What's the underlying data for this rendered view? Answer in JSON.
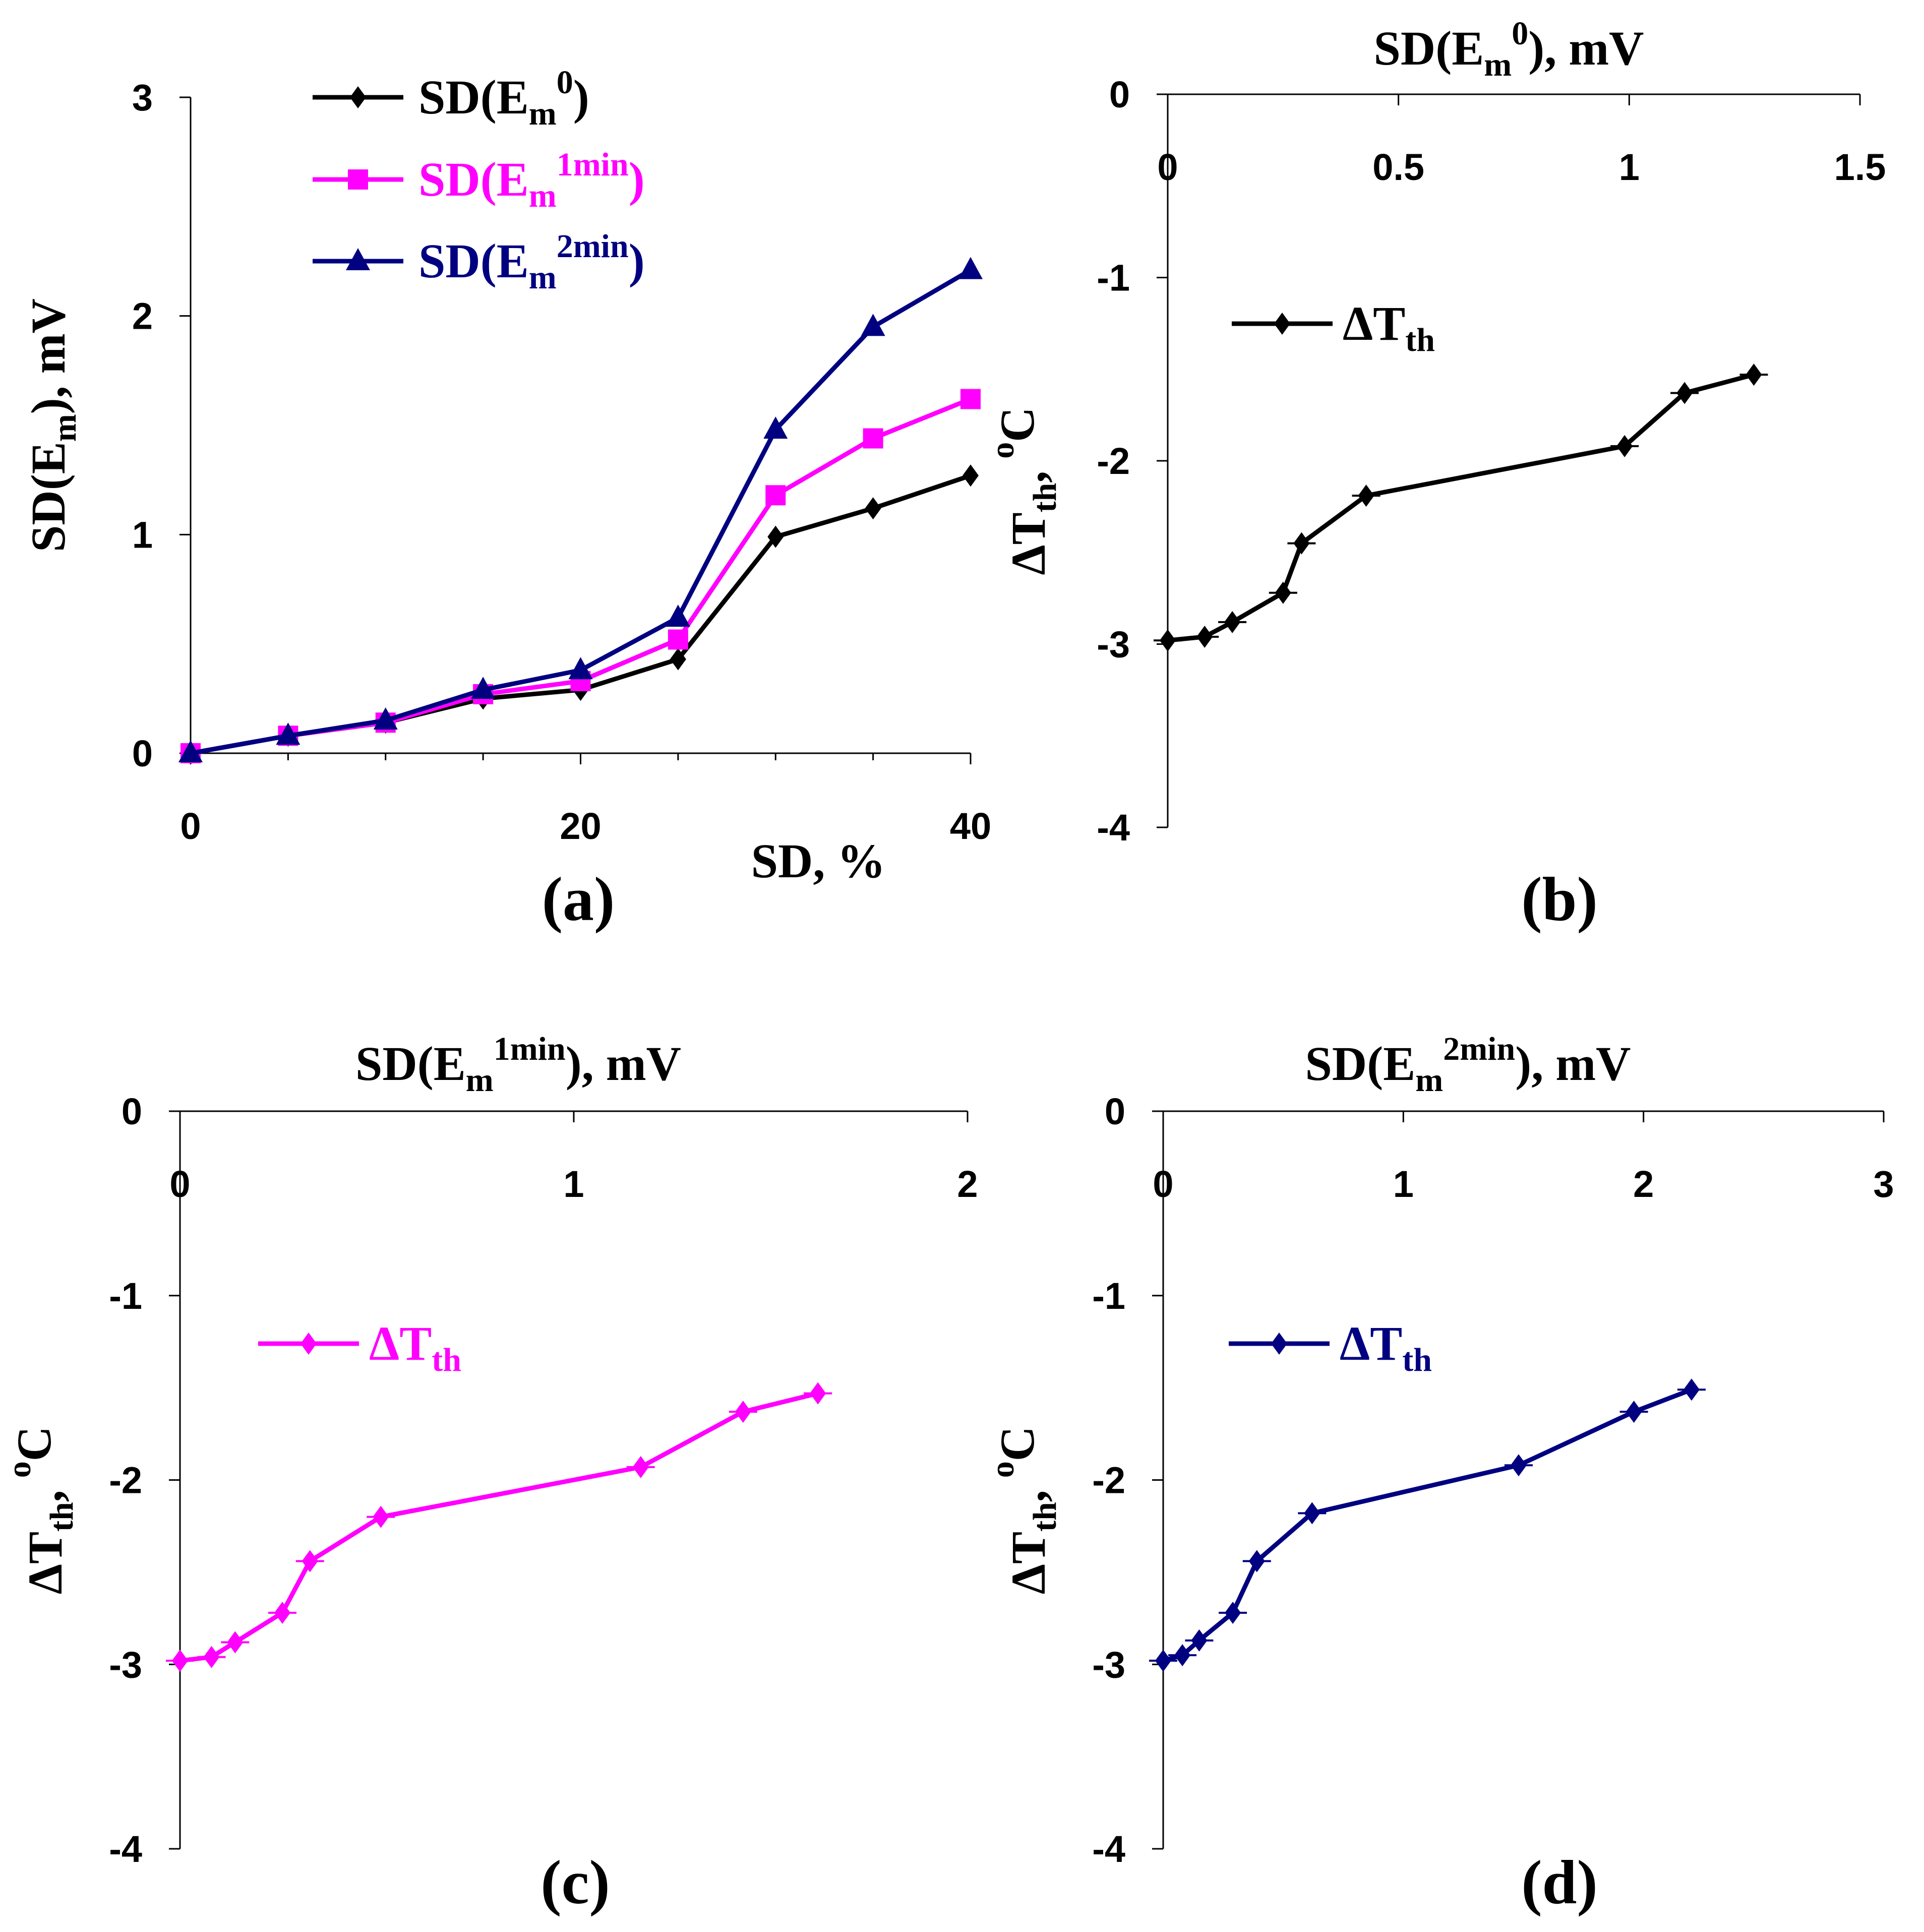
{
  "chart_data": [
    {
      "panel": "(a)",
      "type": "line",
      "xlabel": "SD, %",
      "ylabel_parts": [
        "SD(E",
        "m",
        "), mV"
      ],
      "xlim": [
        0,
        40
      ],
      "ylim": [
        0,
        3
      ],
      "xticks": [
        "0",
        "20",
        "40"
      ],
      "yticks": [
        "0",
        "1",
        "2",
        "3"
      ],
      "x": [
        0,
        5,
        10,
        15,
        20,
        25,
        30,
        35,
        40
      ],
      "series": [
        {
          "name": "SD(Em0)",
          "label_parts": [
            "SD(E",
            "m",
            "0",
            ")"
          ],
          "color": "#000000",
          "marker": "diamond",
          "values": [
            0,
            0.08,
            0.14,
            0.25,
            0.29,
            0.43,
            0.99,
            1.12,
            1.27
          ]
        },
        {
          "name": "SD(Em1min)",
          "label_parts": [
            "SD(E",
            "m",
            "1min",
            ")"
          ],
          "color": "#ff00ff",
          "marker": "square",
          "values": [
            0,
            0.08,
            0.14,
            0.27,
            0.33,
            0.52,
            1.18,
            1.44,
            1.62
          ]
        },
        {
          "name": "SD(Em2min)",
          "label_parts": [
            "SD(E",
            "m",
            "2min",
            ")"
          ],
          "color": "#000080",
          "marker": "triangle",
          "values": [
            0,
            0.08,
            0.15,
            0.29,
            0.38,
            0.62,
            1.48,
            1.95,
            2.21
          ]
        }
      ]
    },
    {
      "panel": "(b)",
      "type": "line",
      "xlabel_parts": [
        "SD(E",
        "m",
        "0",
        "), mV"
      ],
      "ylabel_parts": [
        "ΔT",
        "th",
        ", ",
        "o",
        "C"
      ],
      "xlim": [
        0,
        1.5
      ],
      "ylim": [
        -4,
        0
      ],
      "xticks": [
        "0",
        "0.5",
        "1",
        "1.5"
      ],
      "yticks": [
        "0",
        "-1",
        "-2",
        "-3",
        "-4"
      ],
      "series": [
        {
          "name": "ΔTth",
          "label_parts": [
            "ΔT",
            "th"
          ],
          "color": "#000000",
          "marker": "diamond",
          "x": [
            0,
            0.08,
            0.14,
            0.25,
            0.29,
            0.43,
            0.99,
            1.12,
            1.27
          ],
          "y": [
            -2.98,
            -2.96,
            -2.88,
            -2.72,
            -2.45,
            -2.19,
            -1.92,
            -1.63,
            -1.53
          ]
        }
      ]
    },
    {
      "panel": "(c)",
      "type": "line",
      "xlabel_parts": [
        "SD(E",
        "m",
        "1min",
        "), mV"
      ],
      "ylabel_parts": [
        "ΔT",
        "th",
        ", ",
        "o",
        "C"
      ],
      "xlim": [
        0,
        2
      ],
      "ylim": [
        -4,
        0
      ],
      "xticks": [
        "0",
        "1",
        "2"
      ],
      "yticks": [
        "0",
        "-1",
        "-2",
        "-3",
        "-4"
      ],
      "series": [
        {
          "name": "ΔTth",
          "label_parts": [
            "ΔT",
            "th"
          ],
          "color": "#ff00ff",
          "marker": "diamond",
          "x": [
            0,
            0.08,
            0.14,
            0.26,
            0.33,
            0.51,
            1.17,
            1.43,
            1.62
          ],
          "y": [
            -2.98,
            -2.96,
            -2.88,
            -2.72,
            -2.44,
            -2.2,
            -1.93,
            -1.63,
            -1.53
          ]
        }
      ]
    },
    {
      "panel": "(d)",
      "type": "line",
      "xlabel_parts": [
        "SD(E",
        "m",
        "2min",
        "), mV"
      ],
      "ylabel_parts": [
        "ΔT",
        "th",
        ", ",
        "o",
        "C"
      ],
      "xlim": [
        0,
        3
      ],
      "ylim": [
        -4,
        0
      ],
      "xticks": [
        "0",
        "1",
        "2",
        "3"
      ],
      "yticks": [
        "0",
        "-1",
        "-2",
        "-3",
        "-4"
      ],
      "series": [
        {
          "name": "ΔTth",
          "label_parts": [
            "ΔT",
            "th"
          ],
          "color": "#000080",
          "marker": "diamond",
          "x": [
            0,
            0.08,
            0.15,
            0.29,
            0.39,
            0.62,
            1.48,
            1.96,
            2.2
          ],
          "y": [
            -2.98,
            -2.95,
            -2.87,
            -2.72,
            -2.44,
            -2.18,
            -1.92,
            -1.63,
            -1.51
          ]
        }
      ]
    }
  ]
}
